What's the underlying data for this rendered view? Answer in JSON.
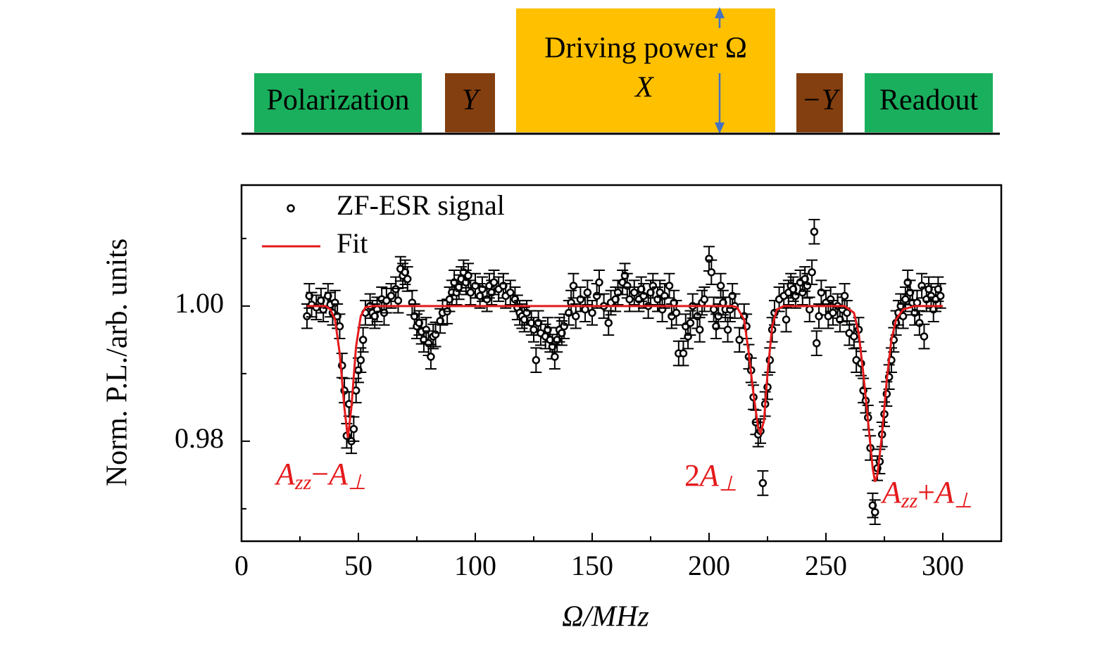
{
  "diagram": {
    "blocks": [
      {
        "label": "Polarization",
        "color": "#1aaf5d"
      },
      {
        "label": "Y",
        "color": "#843f10"
      },
      {
        "label": "Driving power Ω",
        "sublabel": "X",
        "color": "#ffc000"
      },
      {
        "label": "−Y",
        "color": "#843f10"
      },
      {
        "label": "Readout",
        "color": "#1aaf5d"
      }
    ]
  },
  "chart_data": {
    "type": "scatter",
    "xlabel": "Ω/MHz",
    "ylabel": "Norm. P.L./arb. units",
    "xlim": [
      0,
      325
    ],
    "ylim": [
      0.9652,
      1.0179
    ],
    "xticks": [
      0,
      50,
      100,
      150,
      200,
      250,
      300
    ],
    "xminorticks": [
      25,
      75,
      125,
      175,
      225,
      275
    ],
    "yticks": [
      0.98,
      {
        "value": 1,
        "label": "1.00"
      }
    ],
    "yminorticks": [
      0.97,
      0.99,
      1.01
    ],
    "legend": "upper left",
    "series": [
      {
        "name": "ZF-ESR signal",
        "type": "scatter",
        "color": "#000000",
        "error": 0.0018,
        "x": [
          28,
          29,
          30,
          32,
          34,
          35,
          37,
          38,
          39,
          40,
          41,
          42,
          43,
          44,
          45,
          46,
          47,
          48,
          49,
          50,
          51,
          52,
          53,
          55,
          56,
          57,
          58,
          60,
          61,
          62,
          64,
          66,
          67,
          68,
          69,
          70,
          71,
          73,
          74,
          75,
          76,
          77,
          78,
          79,
          80,
          81,
          82,
          83,
          85,
          86,
          88,
          89,
          90,
          91,
          92,
          93,
          94,
          95,
          96,
          97,
          98,
          100,
          102,
          103,
          105,
          106,
          107,
          108,
          110,
          112,
          113,
          115,
          117,
          118,
          119,
          120,
          121,
          122,
          124,
          125,
          126,
          127,
          128,
          130,
          131,
          132,
          133,
          134,
          135,
          136,
          137,
          138,
          140,
          141,
          142,
          143,
          145,
          147,
          148,
          150,
          152,
          153,
          155,
          157,
          158,
          160,
          161,
          163,
          164,
          165,
          166,
          168,
          170,
          171,
          172,
          174,
          175,
          176,
          178,
          179,
          180,
          181,
          183,
          184,
          185,
          186,
          187,
          189,
          190,
          191,
          192,
          193,
          195,
          196,
          197,
          198,
          200,
          201,
          202,
          203,
          204,
          205,
          206,
          207,
          208,
          209,
          210,
          211,
          213,
          215,
          216,
          217,
          218,
          219,
          220,
          221,
          222,
          223,
          224,
          225,
          226,
          227,
          228,
          230,
          232,
          233,
          234,
          235,
          236,
          237,
          239,
          240,
          241,
          242,
          243,
          244,
          245,
          246,
          247,
          248,
          250,
          251,
          252,
          253,
          255,
          256,
          257,
          258,
          259,
          260,
          262,
          263,
          264,
          265,
          266,
          267,
          268,
          269,
          270,
          271,
          272,
          273,
          274,
          275,
          276,
          277,
          278,
          279,
          280,
          281,
          282,
          283,
          284,
          285,
          286,
          287,
          288,
          289,
          290,
          291,
          292,
          293,
          294,
          295,
          296,
          297,
          298,
          299
        ],
        "values": [
          0.9985,
          1.0015,
          1.0002,
          0.9998,
          1.0008,
          0.9995,
          1.0015,
          1.0002,
          0.999,
          1.0005,
          0.9985,
          0.997,
          0.9912,
          0.9875,
          0.9808,
          0.9855,
          0.98,
          0.9818,
          0.9875,
          0.9905,
          0.992,
          0.995,
          0.999,
          1.0,
          0.999,
          0.9985,
          0.9995,
          1.001,
          0.999,
          1.0008,
          1.0015,
          1.0025,
          1.0008,
          1.0055,
          1.0045,
          1.005,
          1.004,
          1.0005,
          0.9985,
          0.997,
          0.9975,
          0.9962,
          0.995,
          0.9965,
          0.9945,
          0.9925,
          0.9955,
          0.9958,
          0.9978,
          0.999,
          0.9992,
          1.001,
          1.002,
          1.0035,
          1.002,
          1.0028,
          1.004,
          1.005,
          1.0035,
          1.0045,
          1.002,
          1.003,
          1.0015,
          1.0025,
          1.001,
          1.003,
          1.002,
          1.0035,
          1.0025,
          1.003,
          1.0015,
          1.002,
          1.001,
          0.9998,
          0.999,
          0.9985,
          0.998,
          0.999,
          0.9975,
          0.9965,
          0.992,
          0.9975,
          0.996,
          0.9955,
          0.9965,
          0.995,
          0.994,
          0.9925,
          0.995,
          0.9965,
          0.996,
          0.997,
          0.999,
          1.0005,
          1.003,
          0.9985,
          1.001,
          0.9995,
          1.002,
          0.999,
          1.0015,
          1.0035,
          1.0,
          0.9975,
          1.0005,
          1.001,
          1.002,
          1.0035,
          1.0045,
          1.003,
          1.001,
          1.002,
          1.001,
          1.0025,
          1.0015,
          1.0,
          1.002,
          1.003,
          1.001,
          1.002,
          0.9995,
          1.0015,
          1.003,
          0.9985,
          1.0005,
          0.999,
          0.993,
          0.993,
          0.997,
          0.9955,
          0.9975,
          1.0,
          0.9985,
          0.9965,
          1.0005,
          1.001,
          1.007,
          1.005,
          0.9995,
          0.997,
          0.9985,
          1.003,
          1.0005,
          0.9995,
          0.9965,
          0.9995,
          1.0015,
          1.0,
          0.995,
          0.9985,
          0.997,
          0.9925,
          0.9905,
          0.9865,
          0.9828,
          0.981,
          0.9815,
          0.9738,
          0.9855,
          0.988,
          0.992,
          0.9965,
          0.999,
          1.001,
          1.0015,
          0.998,
          1.002,
          1.003,
          1.0025,
          1.0015,
          1.0035,
          1.002,
          1.004,
          1.003,
          0.9995,
          1.005,
          1.011,
          0.9945,
          0.9985,
          1.002,
          1.0005,
          0.9985,
          1.001,
          0.999,
          1.0,
          0.998,
          0.9995,
          1.0015,
          0.999,
          0.996,
          0.9955,
          0.992,
          0.9965,
          0.9915,
          0.9875,
          0.986,
          0.9835,
          0.979,
          0.9705,
          0.9695,
          0.976,
          0.977,
          0.981,
          0.984,
          0.987,
          0.9895,
          0.992,
          0.995,
          0.9975,
          0.999,
          1.0,
          0.9985,
          1.001,
          1.0035,
          1.002,
          1.0005,
          0.999,
          1.0005,
          0.9975,
          1.003,
          0.9955,
          1.001,
          1.0025,
          1.0015,
          0.9995,
          1.001,
          1.0025,
          1.0015
        ]
      },
      {
        "name": "Fit",
        "type": "line",
        "color": "#e41a1c",
        "x": [
          28,
          36,
          38,
          40,
          42,
          44,
          45.5,
          47,
          49,
          51,
          53,
          56,
          210,
          212,
          215,
          217,
          219,
          221,
          222,
          223.5,
          225,
          227,
          229,
          232,
          258,
          262,
          264,
          266,
          268,
          270,
          271,
          272,
          274,
          276,
          278,
          280,
          283,
          288,
          300
        ],
        "values": [
          1.0,
          1.0,
          0.9995,
          0.998,
          0.993,
          0.985,
          0.9805,
          0.985,
          0.994,
          0.9985,
          0.9998,
          1.0,
          1.0,
          0.9998,
          0.998,
          0.993,
          0.987,
          0.982,
          0.9812,
          0.983,
          0.99,
          0.997,
          0.9995,
          1.0,
          1.0,
          0.999,
          0.996,
          0.99,
          0.983,
          0.976,
          0.974,
          0.975,
          0.981,
          0.989,
          0.995,
          0.998,
          0.9995,
          1.0,
          1.0
        ]
      }
    ],
    "annotations": [
      [
        {
          "text": "A",
          "style": "italic"
        },
        {
          "text": "zz",
          "style": "sub"
        },
        {
          "text": "−",
          "style": "normal"
        },
        {
          "text": "A",
          "style": "italic"
        },
        {
          "text": "⊥",
          "style": "sub"
        }
      ],
      [
        {
          "text": "2",
          "style": "normal"
        },
        {
          "text": "A",
          "style": "italic"
        },
        {
          "text": "⊥",
          "style": "sub"
        }
      ],
      [
        {
          "text": "A",
          "style": "italic"
        },
        {
          "text": "zz",
          "style": "sub"
        },
        {
          "text": "+",
          "style": "normal"
        },
        {
          "text": "A",
          "style": "italic"
        },
        {
          "text": "⊥",
          "style": "sub"
        }
      ]
    ]
  }
}
